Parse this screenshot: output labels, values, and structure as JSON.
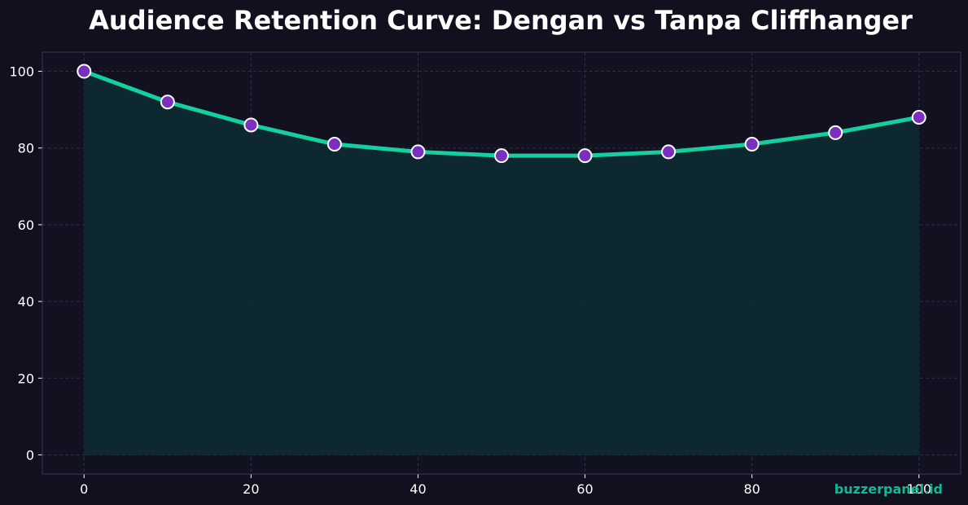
{
  "chart_data": {
    "type": "area",
    "title": "Audience Retention Curve: Dengan vs Tanpa Cliffhanger",
    "xlabel": "",
    "ylabel": "",
    "x": [
      0,
      10,
      20,
      30,
      40,
      50,
      60,
      70,
      80,
      90,
      100
    ],
    "series": [
      {
        "values": [
          100,
          92,
          86,
          81,
          79,
          78,
          78,
          79,
          81,
          84,
          88
        ]
      }
    ],
    "xlim": [
      -5,
      105
    ],
    "ylim": [
      -5,
      105
    ],
    "xticks": [
      0,
      20,
      40,
      60,
      80,
      100
    ],
    "yticks": [
      0,
      20,
      40,
      60,
      80,
      100
    ],
    "grid": true,
    "legend": "none"
  },
  "watermark": "buzzerpanel.id",
  "colors": {
    "background": "#10101e",
    "plot_background": "#11111f",
    "axes_frame": "#3a3a55",
    "grid": "#2e2e48",
    "line": "#14d0a0",
    "area_fill": "#0e2a30",
    "marker_fill": "#7b2fbe",
    "marker_stroke": "#ffffff",
    "title": "#ffffff",
    "tick_text": "#ffffff",
    "watermark": "#14b890"
  }
}
